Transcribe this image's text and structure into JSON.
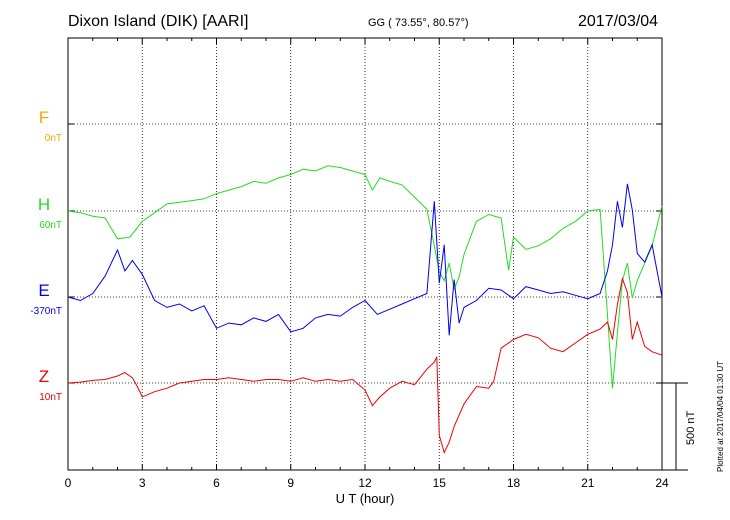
{
  "header": {
    "station": "Dixon Island (DIK)  [AARI]",
    "coords": "GG ( 73.55°,  80.57°)",
    "date": "2017/03/04"
  },
  "plotted_note": "Plotted at 2017/04/04 01:30 UT",
  "scale_bar_label": "500 nT",
  "colors": {
    "F": "#ffa500",
    "H": "#22dd22",
    "E": "#0000ee",
    "Z": "#ee0000"
  },
  "chart_data": {
    "type": "line",
    "xlabel": "U T (hour)",
    "xlim": [
      0,
      24
    ],
    "xticks": [
      "0",
      "3",
      "6",
      "9",
      "12",
      "15",
      "18",
      "21",
      "24"
    ],
    "grid": true,
    "scale_bar_nT": 500,
    "series": [
      {
        "name": "F",
        "baseline_label": "0nT",
        "color": "#ffa500",
        "x": [],
        "y": []
      },
      {
        "name": "H",
        "baseline_label": "60nT",
        "color": "#22dd22",
        "x": [
          0,
          0.5,
          1,
          1.5,
          2,
          2.5,
          3,
          3.5,
          4,
          4.5,
          5,
          5.5,
          6,
          6.5,
          7,
          7.5,
          8,
          8.5,
          9,
          9.5,
          10,
          10.5,
          11,
          11.5,
          12,
          12.3,
          12.6,
          13,
          13.5,
          14,
          14.5,
          14.8,
          15,
          15.2,
          15.4,
          15.6,
          15.8,
          16,
          16.5,
          17,
          17.5,
          17.8,
          18,
          18.5,
          19,
          19.5,
          20,
          20.5,
          21,
          21.5,
          21.8,
          22,
          22.2,
          22.4,
          22.6,
          22.8,
          23,
          23.3,
          23.6,
          24
        ],
        "y": [
          0,
          -10,
          -30,
          -40,
          -160,
          -150,
          -60,
          -10,
          40,
          50,
          60,
          70,
          100,
          120,
          140,
          170,
          160,
          190,
          210,
          240,
          230,
          260,
          250,
          230,
          210,
          120,
          190,
          170,
          150,
          80,
          10,
          -200,
          -350,
          -400,
          -300,
          -450,
          -380,
          -250,
          -60,
          -20,
          -40,
          -340,
          -150,
          -220,
          -200,
          -160,
          -100,
          -60,
          0,
          10,
          -600,
          -1020,
          -700,
          -400,
          -300,
          -500,
          -400,
          -300,
          -200,
          30
        ]
      },
      {
        "name": "E",
        "baseline_label": "-370nT",
        "color": "#0000ee",
        "x": [
          0,
          0.5,
          1,
          1.5,
          2,
          2.3,
          2.6,
          3,
          3.5,
          4,
          4.5,
          5,
          5.5,
          6,
          6.5,
          7,
          7.5,
          8,
          8.5,
          9,
          9.5,
          10,
          10.5,
          11,
          11.5,
          12,
          12.5,
          13,
          13.5,
          14,
          14.5,
          14.8,
          15,
          15.2,
          15.4,
          15.6,
          15.8,
          16,
          16.5,
          17,
          17.5,
          18,
          18.5,
          19,
          19.5,
          20,
          20.5,
          21,
          21.5,
          21.8,
          22,
          22.2,
          22.4,
          22.6,
          22.8,
          23,
          23.3,
          23.6,
          24
        ],
        "y": [
          0,
          -20,
          20,
          120,
          270,
          150,
          210,
          130,
          -20,
          -60,
          -40,
          -80,
          -50,
          -180,
          -150,
          -160,
          -120,
          -140,
          -100,
          -200,
          -180,
          -120,
          -100,
          -110,
          -60,
          -20,
          -100,
          -70,
          -40,
          -10,
          20,
          550,
          80,
          300,
          -220,
          100,
          -150,
          -60,
          -20,
          50,
          40,
          -10,
          60,
          40,
          20,
          30,
          10,
          -10,
          20,
          150,
          300,
          550,
          400,
          650,
          500,
          250,
          200,
          300,
          0
        ]
      },
      {
        "name": "Z",
        "baseline_label": "10nT",
        "color": "#ee0000",
        "x": [
          0,
          0.5,
          1,
          1.5,
          2,
          2.3,
          2.6,
          2.8,
          3,
          3.5,
          4,
          4.5,
          5,
          5.5,
          6,
          6.5,
          7,
          7.5,
          8,
          8.5,
          9,
          9.5,
          10,
          10.5,
          11,
          11.5,
          12,
          12.3,
          12.6,
          13,
          13.5,
          14,
          14.5,
          14.8,
          14.9,
          15,
          15.2,
          15.4,
          15.6,
          16,
          16.5,
          17,
          17.2,
          17.5,
          18,
          18.5,
          19,
          19.5,
          20,
          20.5,
          21,
          21.5,
          21.8,
          22,
          22.2,
          22.4,
          22.6,
          22.8,
          23,
          23.3,
          23.6,
          24
        ],
        "y": [
          0,
          5,
          15,
          20,
          40,
          60,
          30,
          -20,
          -80,
          -50,
          -30,
          0,
          10,
          20,
          20,
          30,
          20,
          10,
          20,
          20,
          10,
          30,
          10,
          20,
          10,
          20,
          -40,
          -130,
          -80,
          -30,
          10,
          -10,
          80,
          120,
          150,
          -300,
          -400,
          -340,
          -250,
          -120,
          -20,
          -30,
          10,
          200,
          250,
          280,
          260,
          200,
          180,
          230,
          280,
          310,
          350,
          250,
          450,
          600,
          520,
          250,
          350,
          210,
          180,
          160
        ]
      }
    ]
  }
}
